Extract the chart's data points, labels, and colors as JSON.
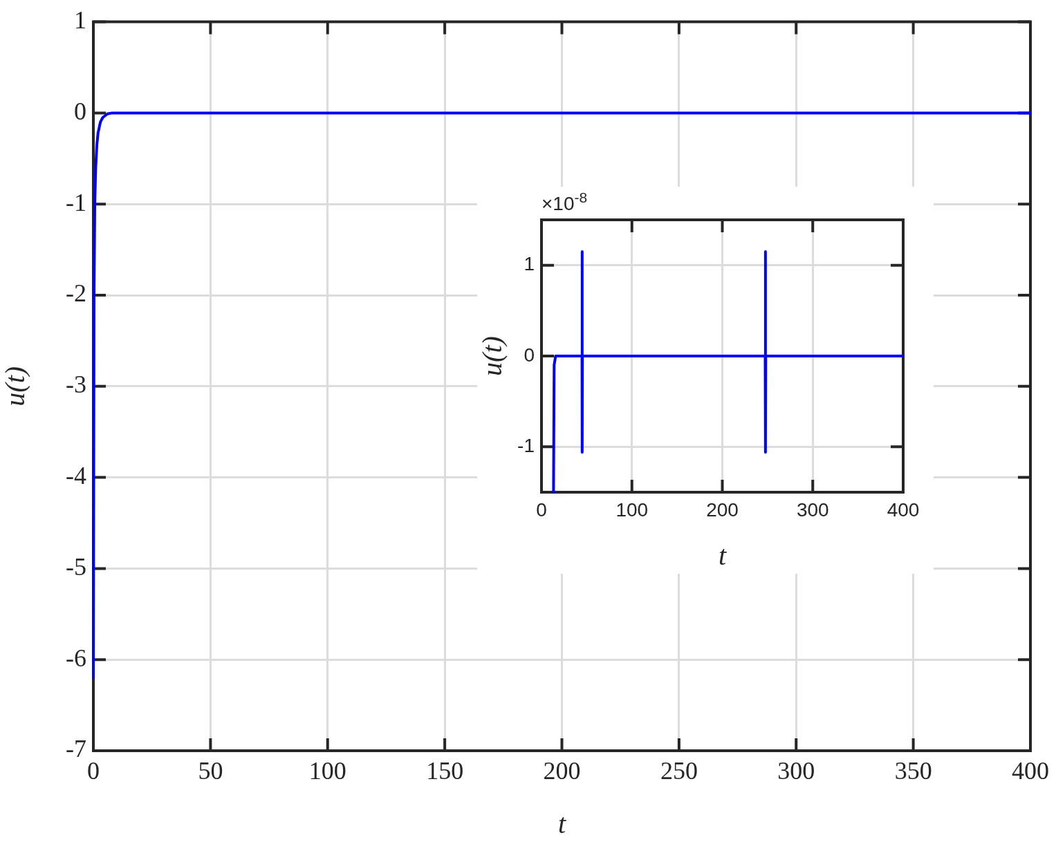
{
  "chart_data": [
    {
      "type": "line",
      "xlabel": "t",
      "ylabel": "u(t)",
      "x": [
        0,
        0.3,
        0.6,
        1,
        1.5,
        2,
        3,
        4,
        6,
        8,
        400
      ],
      "series": [
        {
          "color": "#0000ff",
          "values": [
            -6.2,
            -2,
            -1,
            -0.6,
            -0.35,
            -0.22,
            -0.1,
            -0.05,
            -0.01,
            0,
            0
          ]
        }
      ],
      "xlim": [
        0,
        400
      ],
      "ylim": [
        -7,
        1
      ],
      "xticks": [
        0,
        50,
        100,
        150,
        200,
        250,
        300,
        350,
        400
      ],
      "yticks": [
        -7,
        -6,
        -5,
        -4,
        -3,
        -2,
        -1,
        0,
        1
      ],
      "grid": true,
      "marker": "none"
    },
    {
      "type": "line",
      "xlabel": "t",
      "ylabel": "u(t)",
      "annotations": [
        "×10$^{-8}$"
      ],
      "x": [
        13.3,
        14,
        15.6,
        44.8,
        44.9,
        45.1,
        45.3,
        247.4,
        247.6,
        247.8,
        248,
        400
      ],
      "series": [
        {
          "color": "#0000ff",
          "values": [
            -1.5,
            -0.1,
            0,
            0,
            1.15,
            -1.06,
            0,
            0,
            1.15,
            -1.06,
            0,
            0
          ]
        }
      ],
      "xlim": [
        0,
        400
      ],
      "ylim": [
        -1.5,
        1.5
      ],
      "xticks": [
        0,
        100,
        200,
        300,
        400
      ],
      "yticks": [
        -1,
        0,
        1
      ],
      "grid": true,
      "marker": "none"
    }
  ]
}
